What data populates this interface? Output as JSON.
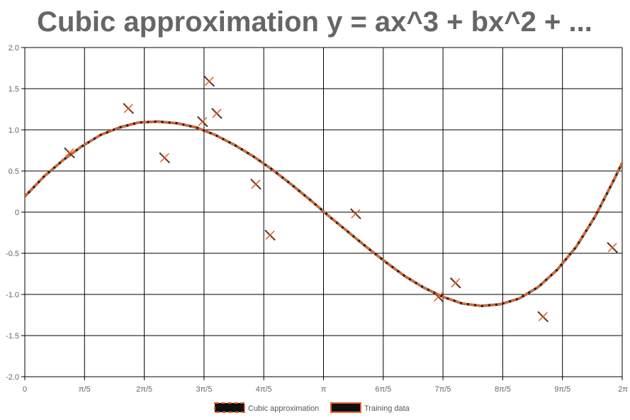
{
  "chart_data": {
    "type": "scatter",
    "title": "Cubic approximation y = ax^3 + bx^2 + ...",
    "xlabel": "",
    "ylabel": "",
    "xlim": [
      0,
      6.2832
    ],
    "ylim": [
      -2.0,
      2.0
    ],
    "grid": true,
    "legend_position": "bottom",
    "x_ticks": [
      {
        "value": 0,
        "label": "0"
      },
      {
        "value": 0.6283,
        "label": "π/5"
      },
      {
        "value": 1.2566,
        "label": "2π/5"
      },
      {
        "value": 1.885,
        "label": "3π/5"
      },
      {
        "value": 2.5133,
        "label": "4π/5"
      },
      {
        "value": 3.1416,
        "label": "π"
      },
      {
        "value": 3.7699,
        "label": "6π/5"
      },
      {
        "value": 4.3982,
        "label": "7π/5"
      },
      {
        "value": 5.0265,
        "label": "8π/5"
      },
      {
        "value": 5.6549,
        "label": "9π/5"
      },
      {
        "value": 6.2832,
        "label": "2π"
      }
    ],
    "y_ticks": [
      {
        "value": 2.0,
        "label": "2.0"
      },
      {
        "value": 1.5,
        "label": "1.5"
      },
      {
        "value": 1.0,
        "label": "1.0"
      },
      {
        "value": 0.5,
        "label": "0.5"
      },
      {
        "value": 0,
        "label": "0"
      },
      {
        "value": -0.5,
        "label": "-0.5"
      },
      {
        "value": -1.0,
        "label": "-1.0"
      },
      {
        "value": -1.5,
        "label": "-1.5"
      },
      {
        "value": -2.0,
        "label": "-2.0"
      }
    ],
    "series": [
      {
        "name": "Cubic approximation",
        "kind": "line",
        "style": "dashed",
        "color": "#e8642a",
        "x": [
          0,
          0.2,
          0.4,
          0.6,
          0.8,
          1.0,
          1.2,
          1.4,
          1.6,
          1.8,
          2.0,
          2.2,
          2.4,
          2.6,
          2.8,
          3.0,
          3.2,
          3.4,
          3.6,
          3.8,
          4.0,
          4.2,
          4.4,
          4.6,
          4.8,
          5.0,
          5.2,
          5.4,
          5.6,
          5.8,
          6.0,
          6.2,
          6.2832
        ],
        "y": [
          0.19,
          0.43,
          0.63,
          0.8,
          0.94,
          1.03,
          1.09,
          1.1,
          1.08,
          1.03,
          0.94,
          0.82,
          0.68,
          0.52,
          0.34,
          0.15,
          -0.05,
          -0.24,
          -0.43,
          -0.61,
          -0.78,
          -0.92,
          -1.03,
          -1.11,
          -1.14,
          -1.12,
          -1.05,
          -0.91,
          -0.7,
          -0.42,
          -0.05,
          0.4,
          0.6
        ]
      },
      {
        "name": "Training data",
        "kind": "scatter",
        "marker": "x",
        "color": "#e8642a",
        "edge_color": "#222222",
        "x": [
          0.47,
          1.09,
          1.47,
          1.87,
          1.94,
          2.02,
          2.43,
          2.58,
          3.48,
          4.35,
          4.53,
          5.45,
          6.18
        ],
        "y": [
          0.72,
          1.26,
          0.66,
          1.1,
          1.59,
          1.2,
          0.34,
          -0.28,
          -0.02,
          -1.03,
          -0.86,
          -1.27,
          -0.43
        ]
      }
    ]
  }
}
